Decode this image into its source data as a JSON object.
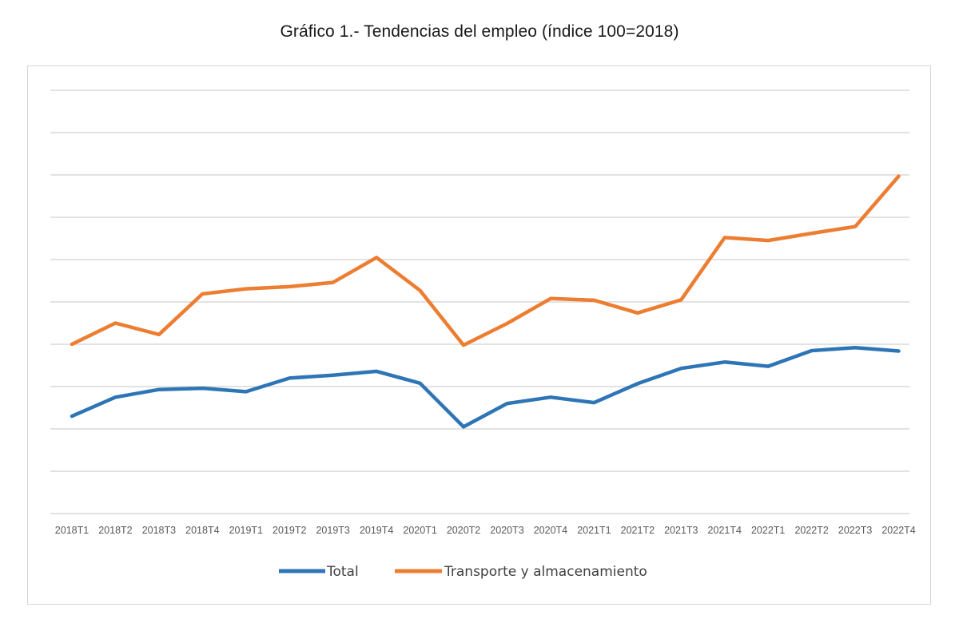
{
  "chart_data": {
    "type": "line",
    "title": "Gráfico 1.- Tendencias del empleo (índice 100=2018)",
    "xlabel": "",
    "ylabel": "",
    "ylim": [
      96,
      106
    ],
    "grid": true,
    "legend_position": "bottom",
    "categories": [
      "2018T1",
      "2018T2",
      "2018T3",
      "2018T4",
      "2019T1",
      "2019T2",
      "2019T3",
      "2019T4",
      "2020T1",
      "2020T2",
      "2020T3",
      "2020T4",
      "2021T1",
      "2021T2",
      "2021T3",
      "2021T4",
      "2022T1",
      "2022T2",
      "2022T3",
      "2022T4"
    ],
    "series": [
      {
        "name": "Total",
        "color": "#2E75B6",
        "values": [
          98.3,
          98.75,
          98.93,
          98.96,
          98.88,
          99.2,
          99.27,
          99.36,
          99.08,
          98.05,
          98.6,
          98.75,
          98.62,
          99.07,
          99.43,
          99.58,
          99.48,
          99.85,
          99.92,
          99.84
        ]
      },
      {
        "name": "Transporte y almacenamiento",
        "color": "#ED7D31",
        "values": [
          100.0,
          100.5,
          100.23,
          101.19,
          101.31,
          101.36,
          101.46,
          102.05,
          101.27,
          99.98,
          100.49,
          101.08,
          101.04,
          100.74,
          101.05,
          102.52,
          102.45,
          102.62,
          102.78,
          103.97
        ]
      }
    ]
  }
}
